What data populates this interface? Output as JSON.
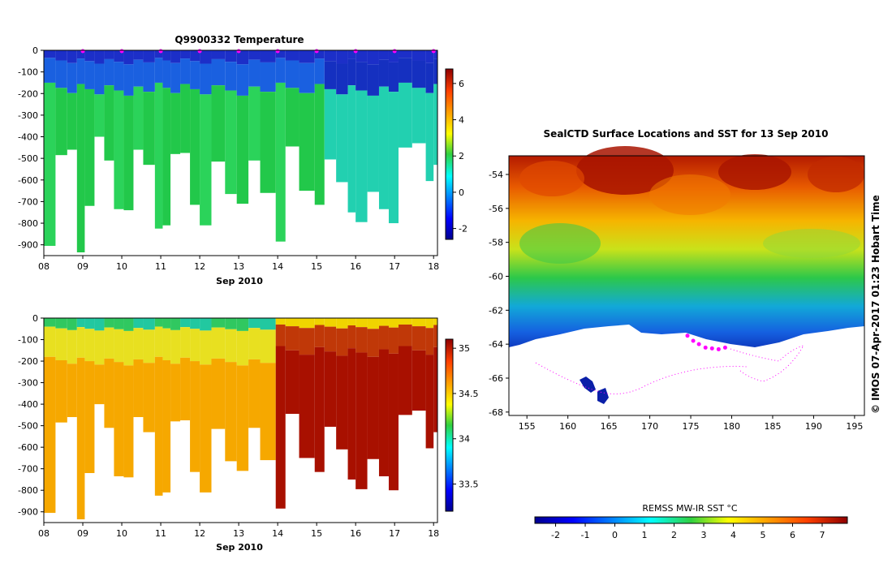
{
  "chart_data": [
    {
      "id": "temperature-section",
      "type": "heatmap",
      "title": "Q9900332  Temperature",
      "xlabel": "Sep 2010",
      "ylabel": "",
      "x_ticks": [
        "08",
        "09",
        "10",
        "11",
        "12",
        "13",
        "14",
        "15",
        "16",
        "17",
        "18"
      ],
      "y_ticks": [
        "0",
        "-100",
        "-200",
        "-300",
        "-400",
        "-500",
        "-600",
        "-700",
        "-800",
        "-900"
      ],
      "xlim": [
        8,
        18.1
      ],
      "ylim": [
        -950,
        0
      ],
      "colorbar": {
        "ticks": [
          "6",
          "4",
          "2",
          "0",
          "-2"
        ],
        "range": [
          -2.6,
          6.8
        ]
      },
      "profile_marker_days": [
        9,
        10,
        11,
        12,
        13,
        14,
        15,
        16,
        17,
        18
      ],
      "profiles": [
        {
          "day": 8.0,
          "bottom": -905
        },
        {
          "day": 8.3,
          "bottom": -485
        },
        {
          "day": 8.6,
          "bottom": -460
        },
        {
          "day": 8.85,
          "bottom": -935
        },
        {
          "day": 9.05,
          "bottom": -720
        },
        {
          "day": 9.3,
          "bottom": -400
        },
        {
          "day": 9.55,
          "bottom": -510
        },
        {
          "day": 9.8,
          "bottom": -735
        },
        {
          "day": 10.05,
          "bottom": -740
        },
        {
          "day": 10.3,
          "bottom": -460
        },
        {
          "day": 10.55,
          "bottom": -530
        },
        {
          "day": 10.85,
          "bottom": -825
        },
        {
          "day": 11.05,
          "bottom": -810
        },
        {
          "day": 11.25,
          "bottom": -480
        },
        {
          "day": 11.5,
          "bottom": -475
        },
        {
          "day": 11.75,
          "bottom": -715
        },
        {
          "day": 12.0,
          "bottom": -810
        },
        {
          "day": 12.3,
          "bottom": -515
        },
        {
          "day": 12.65,
          "bottom": -665
        },
        {
          "day": 12.95,
          "bottom": -710
        },
        {
          "day": 13.25,
          "bottom": -510
        },
        {
          "day": 13.55,
          "bottom": -660
        },
        {
          "day": 13.95,
          "bottom": -885
        },
        {
          "day": 14.2,
          "bottom": -445
        },
        {
          "day": 14.55,
          "bottom": -650
        },
        {
          "day": 14.95,
          "bottom": -715
        },
        {
          "day": 15.2,
          "bottom": -505
        },
        {
          "day": 15.5,
          "bottom": -610
        },
        {
          "day": 15.8,
          "bottom": -750
        },
        {
          "day": 16.0,
          "bottom": -795
        },
        {
          "day": 16.3,
          "bottom": -655
        },
        {
          "day": 16.6,
          "bottom": -735
        },
        {
          "day": 16.85,
          "bottom": -800
        },
        {
          "day": 17.1,
          "bottom": -450
        },
        {
          "day": 17.45,
          "bottom": -430
        },
        {
          "day": 17.8,
          "bottom": -605
        },
        {
          "day": 18.0,
          "bottom": -530
        }
      ]
    },
    {
      "id": "salinity-section",
      "type": "heatmap",
      "title": "",
      "xlabel": "Sep 2010",
      "ylabel": "",
      "x_ticks": [
        "08",
        "09",
        "10",
        "11",
        "12",
        "13",
        "14",
        "15",
        "16",
        "17",
        "18"
      ],
      "y_ticks": [
        "0",
        "-100",
        "-200",
        "-300",
        "-400",
        "-500",
        "-600",
        "-700",
        "-800",
        "-900"
      ],
      "xlim": [
        8,
        18.1
      ],
      "ylim": [
        -950,
        0
      ],
      "colorbar": {
        "ticks": [
          "35",
          "34.5",
          "34",
          "33.5"
        ],
        "range": [
          33.2,
          35.1
        ]
      }
    },
    {
      "id": "sst-map",
      "type": "heatmap",
      "title": "SealCTD Surface Locations and SST for 13 Sep 2010",
      "xlabel": "",
      "ylabel": "",
      "x_ticks": [
        "155",
        "160",
        "165",
        "170",
        "175",
        "180",
        "185",
        "190",
        "195"
      ],
      "y_ticks": [
        "-54",
        "-56",
        "-58",
        "-60",
        "-62",
        "-64",
        "-66",
        "-68"
      ],
      "xlim": [
        152.8,
        196.2
      ],
      "ylim": [
        -68.2,
        -52.9
      ],
      "side_text": "© IMOS 07-Apr-2017 01:23 Hobart Time",
      "track_color": "#ff00ff",
      "track_points": [
        [
          174.6,
          -63.5
        ],
        [
          175.3,
          -63.8
        ],
        [
          176.0,
          -64.0
        ],
        [
          176.8,
          -64.2
        ],
        [
          177.6,
          -64.25
        ],
        [
          178.4,
          -64.3
        ],
        [
          179.2,
          -64.2
        ]
      ],
      "colorbar": {
        "label": "REMSS MW-IR SST °C",
        "ticks": [
          "-2",
          "-1",
          "0",
          "1",
          "2",
          "3",
          "4",
          "5",
          "6",
          "7"
        ],
        "range": [
          -2.7,
          7.85
        ]
      }
    }
  ],
  "colors": {
    "ice": "#ffffff",
    "cold": "#1a1fb0",
    "warm": "#b31f00",
    "marker": "#ff00ff"
  }
}
